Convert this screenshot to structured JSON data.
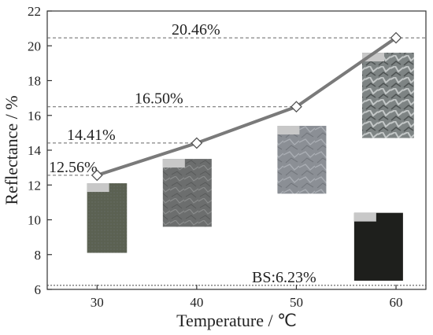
{
  "chart_data": {
    "type": "line",
    "title": "",
    "xlabel": "Temperature / ℃",
    "ylabel": "Reflectance / %",
    "x": [
      30,
      40,
      50,
      60
    ],
    "xticks": [
      "30",
      "40",
      "50",
      "60"
    ],
    "xlim": [
      25,
      63
    ],
    "ylim": [
      6,
      22
    ],
    "yticks": [
      "6",
      "8",
      "10",
      "12",
      "14",
      "16",
      "18",
      "20",
      "22"
    ],
    "series": [
      {
        "values": [
          12.56,
          14.41,
          16.5,
          20.46
        ],
        "color": "#7a7a7a",
        "marker": "open-diamond"
      }
    ],
    "annotations": [
      {
        "text": "12.56%",
        "y": 12.56
      },
      {
        "text": "14.41%",
        "y": 14.41
      },
      {
        "text": "16.50%",
        "y": 16.5
      },
      {
        "text": "20.46%",
        "y": 20.46
      }
    ],
    "baseline": {
      "text": "BS:6.23%",
      "y": 6.23
    },
    "inset_images": [
      {
        "x": 30,
        "texture": "smooth-olive"
      },
      {
        "x": 40,
        "texture": "grey-crystalline"
      },
      {
        "x": 50,
        "texture": "light-crystalline"
      },
      {
        "x": 60,
        "texture": "coarse-metallic"
      },
      {
        "x": 60,
        "texture": "dark-reference"
      }
    ],
    "grid": false,
    "legend": "none"
  }
}
